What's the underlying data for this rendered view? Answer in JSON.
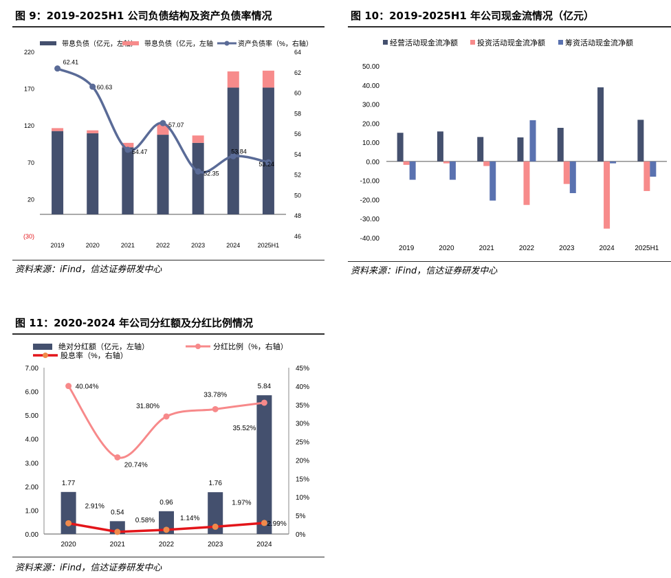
{
  "colors": {
    "navy": "#44506e",
    "salmon": "#f78b8b",
    "steel": "#5a72b0",
    "line_navy": "#5a6b97",
    "line_pink": "#f7898a",
    "line_red": "#e3151a",
    "dot_orange": "#f08a4b"
  },
  "fig9": {
    "title": "图 9：2019-2025H1 公司负债结构及资产负债率情况",
    "source": "资料来源：iFind，信达证券研发中心",
    "legend": [
      "带息负债（亿元，左轴）",
      "带息负债（亿元，左轴",
      "资产负债率（%，右轴）"
    ]
  },
  "fig10": {
    "title": "图 10：2019-2025H1 年公司现金流情况（亿元）",
    "source": "资料来源：iFind，信达证券研发中心",
    "legend": [
      "经营活动现金流净额",
      "投资活动现金流净额",
      "筹资活动现金流净额"
    ]
  },
  "fig11": {
    "title": "图 11：2020-2024 年公司分红额及分红比例情况",
    "source": "资料来源：iFind，信达证券研发中心",
    "legend": [
      "绝对分红额（亿元，左轴）",
      "分红比例（%，右轴）",
      "股息率（%，右轴）"
    ]
  },
  "chart_data": [
    {
      "type": "bar",
      "title": "图 9：2019-2025H1 公司负债结构及资产负债率情况",
      "categories": [
        "2019",
        "2020",
        "2021",
        "2022",
        "2023",
        "2024",
        "2025H1"
      ],
      "series": [
        {
          "name": "带息负债（亿元，左轴）",
          "axis": "left",
          "stack": "a",
          "values": [
            113,
            110,
            91,
            108,
            97,
            172,
            172
          ]
        },
        {
          "name": "带息负债（亿元，左轴",
          "axis": "left",
          "stack": "a",
          "values": [
            4,
            4,
            6,
            14,
            10,
            22,
            23
          ]
        },
        {
          "name": "资产负债率（%，右轴）",
          "axis": "right",
          "type": "line",
          "values": [
            62.41,
            60.63,
            54.47,
            57.07,
            52.35,
            53.84,
            53.24
          ]
        }
      ],
      "left_ticks": [
        "220",
        "170",
        "120",
        "70",
        "20",
        "(30)"
      ],
      "left_tick_values": [
        220,
        170,
        120,
        70,
        20,
        -30
      ],
      "ylim_left": [
        -30,
        220
      ],
      "right_ticks": [
        "64",
        "62",
        "60",
        "58",
        "56",
        "54",
        "52",
        "50",
        "48",
        "46"
      ],
      "ylim_right": [
        46,
        64
      ],
      "line_labels": [
        "62.41",
        "60.63",
        "54.47",
        "57.07",
        "52.35",
        "53.84",
        "53.24"
      ]
    },
    {
      "type": "bar",
      "title": "图 10：2019-2025H1 年公司现金流情况（亿元）",
      "categories": [
        "2019",
        "2020",
        "2021",
        "2022",
        "2023",
        "2024",
        "2025H1"
      ],
      "series": [
        {
          "name": "经营活动现金流净额",
          "values": [
            15.0,
            15.7,
            12.8,
            12.6,
            17.6,
            38.8,
            21.8
          ]
        },
        {
          "name": "投资活动现金流净额",
          "values": [
            -1.8,
            -1.0,
            -2.4,
            -22.8,
            -11.8,
            -35.2,
            -15.5
          ]
        },
        {
          "name": "筹资活动现金流净额",
          "values": [
            -9.6,
            -9.6,
            -20.5,
            21.6,
            -16.6,
            -1.0,
            -8.0
          ]
        }
      ],
      "y_ticks": [
        "50.00",
        "40.00",
        "30.00",
        "20.00",
        "10.00",
        "0.00",
        "-10.00",
        "-20.00",
        "-30.00",
        "-40.00"
      ],
      "ylim": [
        -40,
        50
      ]
    },
    {
      "type": "bar",
      "title": "图 11：2020-2024 年公司分红额及分红比例情况",
      "categories": [
        "2020",
        "2021",
        "2022",
        "2023",
        "2024"
      ],
      "series": [
        {
          "name": "绝对分红额（亿元，左轴）",
          "axis": "left",
          "values": [
            1.77,
            0.54,
            0.96,
            1.76,
            5.84
          ]
        },
        {
          "name": "分红比例（%，右轴）",
          "axis": "right",
          "type": "line",
          "values": [
            40.04,
            20.74,
            31.8,
            33.78,
            35.52
          ]
        },
        {
          "name": "股息率（%，右轴）",
          "axis": "right",
          "type": "line",
          "values": [
            2.91,
            0.58,
            1.14,
            1.97,
            2.99
          ]
        }
      ],
      "bar_labels": [
        "1.77",
        "0.54",
        "0.96",
        "1.76",
        "5.84"
      ],
      "ratio_labels": [
        "40.04%",
        "20.74%",
        "31.80%",
        "33.78%",
        "35.52%"
      ],
      "yield_labels": [
        "2.91%",
        "0.58%",
        "1.14%",
        "1.97%",
        "2.99%"
      ],
      "left_ticks": [
        "7.00",
        "6.00",
        "5.00",
        "4.00",
        "3.00",
        "2.00",
        "1.00",
        "0.00"
      ],
      "ylim_left": [
        0,
        7
      ],
      "right_ticks": [
        "45%",
        "40%",
        "35%",
        "30%",
        "25%",
        "20%",
        "15%",
        "10%",
        "5%",
        "0%"
      ],
      "ylim_right": [
        0,
        45
      ]
    }
  ]
}
